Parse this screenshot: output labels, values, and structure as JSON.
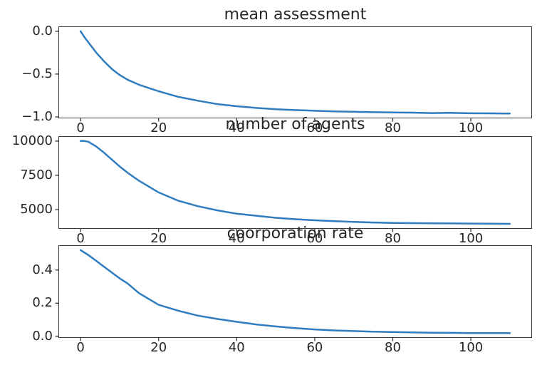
{
  "figure": {
    "background_color": "#ffffff",
    "line_color": "#2f7dbf",
    "spine_color": "#3a3a3a",
    "text_color": "#262626"
  },
  "chart_data": [
    {
      "type": "line",
      "title": "mean assessment",
      "xlabel": "",
      "ylabel": "",
      "x": [
        0,
        1,
        2,
        4,
        6,
        8,
        10,
        12,
        15,
        20,
        25,
        30,
        35,
        40,
        45,
        50,
        55,
        60,
        65,
        70,
        75,
        80,
        85,
        90,
        95,
        100,
        105,
        110
      ],
      "values": [
        0.0,
        -0.07,
        -0.13,
        -0.25,
        -0.35,
        -0.44,
        -0.51,
        -0.565,
        -0.625,
        -0.7,
        -0.765,
        -0.81,
        -0.85,
        -0.875,
        -0.895,
        -0.91,
        -0.92,
        -0.928,
        -0.935,
        -0.94,
        -0.945,
        -0.948,
        -0.95,
        -0.955,
        -0.952,
        -0.957,
        -0.958,
        -0.96
      ],
      "xlim": [
        -5.5,
        115.5
      ],
      "ylim": [
        -1.008,
        0.048
      ],
      "xticks": [
        0,
        20,
        40,
        60,
        80,
        100
      ],
      "xtick_labels": [
        "0",
        "20",
        "40",
        "60",
        "80",
        "100"
      ],
      "yticks": [
        0.0,
        -0.5,
        -1.0
      ],
      "ytick_labels": [
        "0.0",
        "−0.5",
        "−1.0"
      ],
      "grid": false,
      "legend": null
    },
    {
      "type": "line",
      "title": "number of agents",
      "xlabel": "",
      "ylabel": "",
      "x": [
        0,
        1,
        2,
        4,
        6,
        8,
        10,
        12,
        15,
        20,
        25,
        30,
        35,
        40,
        45,
        50,
        55,
        60,
        65,
        70,
        75,
        80,
        85,
        90,
        95,
        100,
        105,
        110
      ],
      "values": [
        10000,
        10000,
        9950,
        9600,
        9150,
        8650,
        8150,
        7700,
        7100,
        6250,
        5650,
        5250,
        4950,
        4700,
        4550,
        4400,
        4300,
        4220,
        4150,
        4100,
        4060,
        4030,
        4010,
        4000,
        3990,
        3980,
        3970,
        3960
      ],
      "xlim": [
        -5.5,
        115.5
      ],
      "ylim": [
        3648,
        10302
      ],
      "xticks": [
        0,
        20,
        40,
        60,
        80,
        100
      ],
      "xtick_labels": [
        "0",
        "20",
        "40",
        "60",
        "80",
        "100"
      ],
      "yticks": [
        10000,
        7500,
        5000
      ],
      "ytick_labels": [
        "10000",
        "7500",
        "5000"
      ],
      "grid": false,
      "legend": null
    },
    {
      "type": "line",
      "title": "coorporation rate",
      "xlabel": "",
      "ylabel": "",
      "x": [
        0,
        1,
        2,
        4,
        6,
        8,
        10,
        12,
        15,
        20,
        25,
        30,
        35,
        40,
        45,
        50,
        55,
        60,
        65,
        70,
        75,
        80,
        85,
        90,
        95,
        100,
        105,
        110
      ],
      "values": [
        0.52,
        0.505,
        0.49,
        0.455,
        0.42,
        0.385,
        0.35,
        0.32,
        0.26,
        0.19,
        0.155,
        0.125,
        0.105,
        0.088,
        0.072,
        0.06,
        0.05,
        0.042,
        0.036,
        0.032,
        0.028,
        0.026,
        0.024,
        0.022,
        0.021,
        0.02,
        0.02,
        0.02
      ],
      "xlim": [
        -5.5,
        115.5
      ],
      "ylim": [
        -0.005,
        0.545
      ],
      "xticks": [
        0,
        20,
        40,
        60,
        80,
        100
      ],
      "xtick_labels": [
        "0",
        "20",
        "40",
        "60",
        "80",
        "100"
      ],
      "yticks": [
        0.4,
        0.2,
        0.0
      ],
      "ytick_labels": [
        "0.4",
        "0.2",
        "0.0"
      ],
      "grid": false,
      "legend": null
    }
  ]
}
